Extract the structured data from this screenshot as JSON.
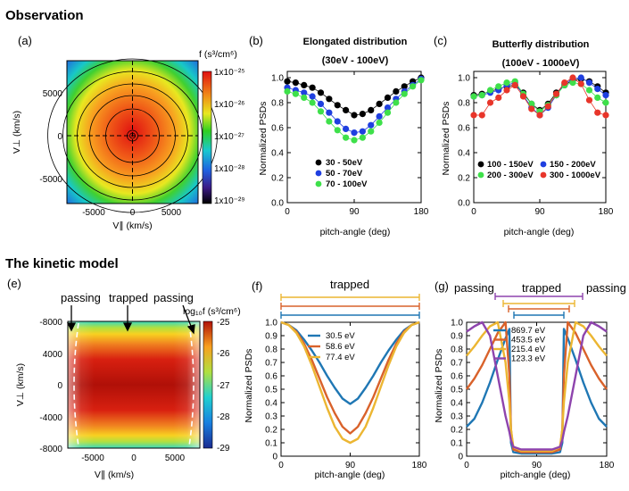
{
  "sections": {
    "observation": "Observation",
    "model": "The kinetic model"
  },
  "panels": {
    "a": {
      "label": "(a)",
      "colorbar_title": "f (s³/cm⁶)",
      "colorbar_ticks": [
        "1x10⁻²⁵",
        "1x10⁻²⁶",
        "1x10⁻²⁷",
        "1x10⁻²⁸",
        "1x10⁻²⁹"
      ],
      "xlabel": "V∥ (km/s)",
      "ylabel": "V⊥ (km/s)",
      "xticks": [
        "-5000",
        "0",
        "5000"
      ],
      "yticks": [
        "5000",
        "0",
        "-5000"
      ]
    },
    "e": {
      "label": "(e)",
      "colorbar_title": "log₁₀f (s³/cm⁶)",
      "colorbar_ticks": [
        "-25",
        "-26",
        "-27",
        "-28",
        "-29"
      ],
      "xlabel": "V∥ (km/s)",
      "ylabel": "V⊥ (km/s)",
      "xticks": [
        "-5000",
        "0",
        "5000"
      ],
      "yticks": [
        "-8000",
        "4000",
        "0",
        "-4000",
        "-8000"
      ],
      "annotations": [
        "passing",
        "trapped",
        "passing"
      ]
    },
    "b": {
      "label": "(b)"
    },
    "c": {
      "label": "(c)"
    },
    "f": {
      "label": "(f)",
      "annotation": "trapped"
    },
    "g": {
      "label": "(g)",
      "annotations": [
        "passing",
        "trapped",
        "passing"
      ]
    }
  },
  "chart_data": [
    {
      "id": "b",
      "type": "scatter",
      "title": "Elongated distribution",
      "subtitle": "(30eV - 100eV)",
      "xlabel": "pitch-angle (deg)",
      "ylabel": "Normalized PSDs",
      "xlim": [
        0,
        180
      ],
      "ylim": [
        0,
        1.05
      ],
      "xticks": [
        0,
        90,
        180
      ],
      "yticks": [
        0.0,
        0.2,
        0.4,
        0.6,
        0.8,
        1.0
      ],
      "legend_position": "bottom-center",
      "x": [
        0,
        11.25,
        22.5,
        33.75,
        45,
        56.25,
        67.5,
        78.75,
        90,
        101.25,
        112.5,
        123.75,
        135,
        146.25,
        157.5,
        168.75,
        180
      ],
      "series": [
        {
          "name": "30 - 50eV",
          "color": "#000000",
          "values": [
            0.97,
            0.96,
            0.94,
            0.92,
            0.88,
            0.83,
            0.78,
            0.74,
            0.7,
            0.71,
            0.74,
            0.79,
            0.84,
            0.89,
            0.93,
            0.97,
            1.0
          ]
        },
        {
          "name": "50 - 70eV",
          "color": "#1f3fe0",
          "values": [
            0.92,
            0.9,
            0.88,
            0.85,
            0.79,
            0.72,
            0.65,
            0.59,
            0.56,
            0.57,
            0.62,
            0.69,
            0.76,
            0.83,
            0.89,
            0.94,
            0.99
          ]
        },
        {
          "name": "70 - 100eV",
          "color": "#3ee04a",
          "values": [
            0.89,
            0.87,
            0.84,
            0.8,
            0.73,
            0.65,
            0.58,
            0.52,
            0.5,
            0.52,
            0.57,
            0.64,
            0.72,
            0.8,
            0.87,
            0.93,
            0.98
          ]
        }
      ]
    },
    {
      "id": "c",
      "type": "scatter",
      "title": "Butterfly distribution",
      "subtitle": "(100eV - 1000eV)",
      "xlabel": "pitch-angle (deg)",
      "ylabel": "Normalized PSDs",
      "xlim": [
        0,
        180
      ],
      "ylim": [
        0,
        1.05
      ],
      "xticks": [
        0,
        90,
        180
      ],
      "yticks": [
        0.0,
        0.2,
        0.4,
        0.6,
        0.8,
        1.0
      ],
      "legend_position": "bottom",
      "x": [
        0,
        11.25,
        22.5,
        33.75,
        45,
        56.25,
        67.5,
        78.75,
        90,
        101.25,
        112.5,
        123.75,
        135,
        146.25,
        157.5,
        168.75,
        180
      ],
      "series": [
        {
          "name": "100 - 150eV",
          "color": "#000000",
          "values": [
            0.86,
            0.87,
            0.89,
            0.91,
            0.93,
            0.94,
            0.88,
            0.79,
            0.74,
            0.79,
            0.88,
            0.94,
            0.98,
            0.99,
            0.97,
            0.93,
            0.88
          ]
        },
        {
          "name": "150 - 200eV",
          "color": "#1f3fe0",
          "values": [
            0.85,
            0.86,
            0.88,
            0.9,
            0.94,
            0.96,
            0.86,
            0.76,
            0.7,
            0.76,
            0.86,
            0.95,
            0.99,
            1.0,
            0.96,
            0.91,
            0.86
          ]
        },
        {
          "name": "200 - 300eV",
          "color": "#3ee04a",
          "values": [
            0.85,
            0.86,
            0.9,
            0.93,
            0.96,
            0.97,
            0.87,
            0.79,
            0.73,
            0.78,
            0.86,
            0.94,
            0.96,
            0.95,
            0.9,
            0.84,
            0.8
          ]
        },
        {
          "name": "300 - 1000eV",
          "color": "#e8352a",
          "values": [
            0.7,
            0.7,
            0.8,
            0.84,
            0.9,
            0.94,
            0.85,
            0.75,
            0.7,
            0.77,
            0.87,
            0.96,
            1.0,
            0.95,
            0.82,
            0.72,
            0.7
          ]
        }
      ]
    },
    {
      "id": "f",
      "type": "line",
      "xlabel": "pitch-angle (deg)",
      "ylabel": "Normalized PSDs",
      "xlim": [
        0,
        180
      ],
      "ylim": [
        0,
        1.0
      ],
      "xticks": [
        0,
        90,
        180
      ],
      "yticks": [
        0,
        0.1,
        0.2,
        0.3,
        0.4,
        0.5,
        0.6,
        0.7,
        0.8,
        0.9,
        1.0
      ],
      "legend_position": "top-center",
      "x": [
        0,
        10,
        20,
        30,
        40,
        50,
        60,
        70,
        80,
        90,
        100,
        110,
        120,
        130,
        140,
        150,
        160,
        170,
        180
      ],
      "series": [
        {
          "name": "30.5 eV",
          "color": "#1f77b4",
          "values": [
            1.0,
            0.98,
            0.94,
            0.87,
            0.79,
            0.7,
            0.6,
            0.51,
            0.43,
            0.39,
            0.43,
            0.51,
            0.6,
            0.7,
            0.79,
            0.87,
            0.94,
            0.98,
            1.0
          ]
        },
        {
          "name": "58.6 eV",
          "color": "#d9622b",
          "values": [
            1.0,
            0.98,
            0.93,
            0.84,
            0.72,
            0.58,
            0.44,
            0.32,
            0.22,
            0.17,
            0.22,
            0.32,
            0.44,
            0.58,
            0.72,
            0.84,
            0.93,
            0.98,
            1.0
          ]
        },
        {
          "name": "77.4 eV",
          "color": "#ecb632",
          "values": [
            1.0,
            0.98,
            0.92,
            0.82,
            0.68,
            0.52,
            0.36,
            0.22,
            0.13,
            0.1,
            0.13,
            0.22,
            0.36,
            0.52,
            0.68,
            0.82,
            0.92,
            0.98,
            1.0
          ]
        }
      ]
    },
    {
      "id": "g",
      "type": "line",
      "xlabel": "pitch-angle (deg)",
      "ylabel": "Normalized PSDs",
      "xlim": [
        0,
        180
      ],
      "ylim": [
        0,
        1.0
      ],
      "xticks": [
        0,
        90,
        180
      ],
      "yticks": [
        0,
        0.1,
        0.2,
        0.3,
        0.4,
        0.5,
        0.6,
        0.7,
        0.8,
        0.9,
        1.0
      ],
      "legend_position": "top-center",
      "x": [
        0,
        10,
        20,
        30,
        40,
        50,
        55,
        57,
        60,
        70,
        80,
        90,
        100,
        110,
        120,
        123,
        125,
        130,
        140,
        150,
        160,
        170,
        180
      ],
      "series": [
        {
          "name": "869.7 eV",
          "color": "#1f77b4",
          "values": [
            0.22,
            0.28,
            0.4,
            0.55,
            0.72,
            0.88,
            0.95,
            0.1,
            0.03,
            0.02,
            0.02,
            0.02,
            0.02,
            0.02,
            0.03,
            0.1,
            0.95,
            0.88,
            0.72,
            0.55,
            0.4,
            0.28,
            0.22
          ]
        },
        {
          "name": "453.5 eV",
          "color": "#d9622b",
          "values": [
            0.5,
            0.58,
            0.68,
            0.8,
            0.92,
            1.0,
            0.6,
            0.2,
            0.05,
            0.03,
            0.03,
            0.03,
            0.03,
            0.03,
            0.05,
            0.2,
            0.6,
            1.0,
            0.92,
            0.8,
            0.68,
            0.58,
            0.5
          ]
        },
        {
          "name": "215.4 eV",
          "color": "#ecb632",
          "values": [
            0.75,
            0.82,
            0.9,
            0.97,
            1.0,
            0.7,
            0.4,
            0.2,
            0.07,
            0.04,
            0.04,
            0.04,
            0.04,
            0.04,
            0.07,
            0.2,
            0.4,
            0.7,
            1.0,
            0.97,
            0.9,
            0.82,
            0.75
          ]
        },
        {
          "name": "123.3 eV",
          "color": "#8e44ad",
          "values": [
            0.93,
            0.97,
            1.0,
            0.9,
            0.6,
            0.3,
            0.18,
            0.12,
            0.07,
            0.05,
            0.05,
            0.05,
            0.05,
            0.05,
            0.07,
            0.12,
            0.18,
            0.3,
            0.6,
            0.9,
            1.0,
            0.97,
            0.93
          ]
        }
      ]
    }
  ]
}
